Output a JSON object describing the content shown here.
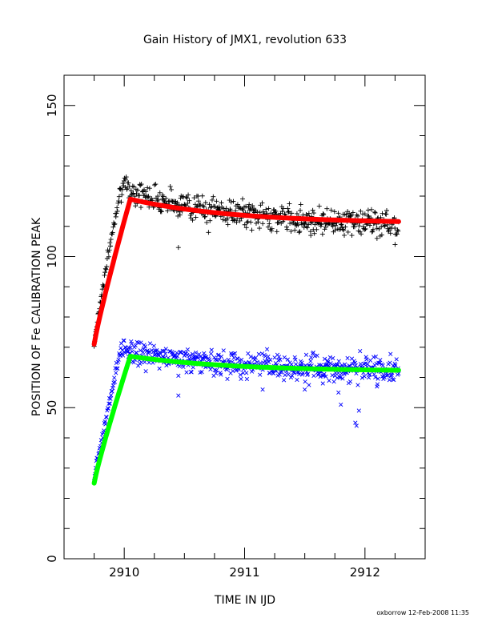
{
  "chart_data": {
    "type": "scatter",
    "title": "Gain History of JMX1, revolution 633",
    "xlabel": "TIME IN IJD",
    "ylabel": "POSITION OF Fe CALIBRATION PEAK",
    "xlim": [
      2909.5,
      2912.5
    ],
    "ylim": [
      0,
      160
    ],
    "xticks": [
      "2910",
      "2911",
      "2912"
    ],
    "yticks": [
      "0",
      "50",
      "100",
      "150"
    ],
    "grid": false,
    "series": [
      {
        "marker": "plus",
        "color": "#000000",
        "t_start": 2909.75,
        "t_end": 2912.28,
        "ramp_end": 2909.97,
        "y_start": 71,
        "y_peak": 123,
        "y_end": 110,
        "scatter": 3,
        "dips": [
          [
            2910.45,
            103
          ],
          [
            2910.7,
            108
          ],
          [
            2911.55,
            107
          ],
          [
            2912.1,
            106
          ],
          [
            2912.25,
            104
          ]
        ]
      },
      {
        "marker": "cross",
        "color": "#0000ff",
        "t_start": 2909.75,
        "t_end": 2912.28,
        "ramp_end": 2909.97,
        "y_start": 26,
        "y_peak": 69,
        "y_end": 62,
        "scatter": 3,
        "dips": [
          [
            2910.45,
            54
          ],
          [
            2911.15,
            56
          ],
          [
            2911.5,
            56
          ],
          [
            2911.65,
            58
          ],
          [
            2911.78,
            55
          ],
          [
            2911.8,
            51
          ],
          [
            2911.92,
            45
          ],
          [
            2911.93,
            44
          ],
          [
            2911.95,
            49
          ],
          [
            2912.1,
            57
          ]
        ]
      },
      {
        "marker": "fit",
        "color": "#ff0000",
        "t_start": 2909.75,
        "t_end": 2912.28,
        "ramp_end": 2910.05,
        "y_start": 71,
        "y_peak": 119,
        "y_end": 111
      },
      {
        "marker": "fit",
        "color": "#00ff00",
        "t_start": 2909.75,
        "t_end": 2912.28,
        "ramp_end": 2910.05,
        "y_start": 25,
        "y_peak": 67,
        "y_end": 62
      }
    ]
  },
  "footer": "oxborrow 12-Feb-2008 11:35"
}
